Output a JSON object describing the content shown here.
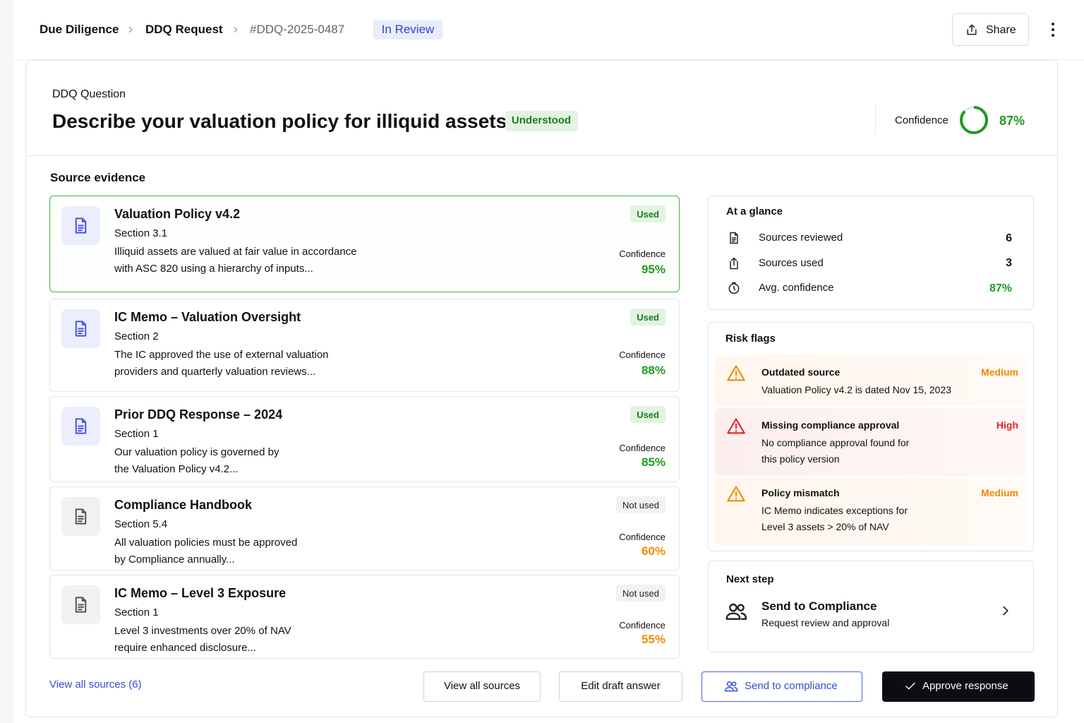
{
  "header": {
    "breadcrumb": [
      "Due Diligence",
      "DDQ Request",
      "#DDQ-2025-0487"
    ],
    "status": "In Review",
    "share": "Share"
  },
  "question": {
    "label": "DDQ Question",
    "text": "Describe your valuation policy for illiquid assets.",
    "badge": "Understood",
    "confidence_label": "Confidence",
    "confidence": {
      "value": 87,
      "label": "87%"
    },
    "color": "#1e9a1e"
  },
  "sources": {
    "title": "Source evidence",
    "items": [
      {
        "title": "Valuation Policy v4.2",
        "section": "Section 3.1",
        "excerpt": [
          "Illiquid assets are valued at fair value in accordance",
          "with ASC 820 using a hierarchy of inputs..."
        ],
        "status": "Used",
        "confidence_label": "Confidence",
        "confidence": "95%",
        "color": "#1e9a1e"
      },
      {
        "title": "IC Memo – Valuation Oversight",
        "section": "Section 2",
        "excerpt": [
          "The IC approved the use of external valuation",
          "providers and quarterly valuation reviews..."
        ],
        "status": "Used",
        "confidence_label": "Confidence",
        "confidence": "88%",
        "color": "#1e9a1e"
      },
      {
        "title": "Prior DDQ Response – 2024",
        "section": "Section 1",
        "excerpt": [
          "Our valuation policy is governed by",
          "the Valuation Policy v4.2..."
        ],
        "status": "Used",
        "confidence_label": "Confidence",
        "confidence": "85%",
        "color": "#1e9a1e"
      },
      {
        "title": "Compliance Handbook",
        "section": "Section 5.4",
        "excerpt": [
          "All valuation policies must be approved",
          "by Compliance annually..."
        ],
        "status": "Not used",
        "confidence_label": "Confidence",
        "confidence": "60%",
        "color": "#f08a00"
      },
      {
        "title": "IC Memo – Level 3 Exposure",
        "section": "Section 1",
        "excerpt": [
          "Level 3 investments over 20% of NAV",
          "require enhanced disclosure..."
        ],
        "status": "Not used",
        "confidence_label": "Confidence",
        "confidence": "55%",
        "color": "#f08a00"
      }
    ]
  },
  "glance": {
    "title": "At a glance",
    "items": [
      {
        "label": "Sources reviewed",
        "value": "6",
        "color": "#111"
      },
      {
        "label": "Sources used",
        "value": "3",
        "color": "#111"
      },
      {
        "label": "Avg. confidence",
        "value": "87%",
        "color": "#1e9a1e"
      }
    ]
  },
  "risks": {
    "title": "Risk flags",
    "items": [
      {
        "title": "Outdated source",
        "severity": "Medium",
        "lines": [
          "Valuation Policy v4.2 is dated Nov 15, 2023"
        ],
        "color": "#f08a00"
      },
      {
        "title": "Missing compliance approval",
        "severity": "High",
        "lines": [
          "No compliance approval found for",
          "this policy version"
        ],
        "color": "#e02424"
      },
      {
        "title": "Policy mismatch",
        "severity": "Medium",
        "lines": [
          "IC Memo indicates exceptions for",
          "Level 3 assets > 20% of NAV"
        ],
        "color": "#f08a00"
      }
    ]
  },
  "next_step": {
    "title": "Next step",
    "action": "Send to Compliance",
    "subtitle": "Request review and approval"
  },
  "footer": {
    "link": "View all sources (6)",
    "buttons": [
      "View all sources",
      "Edit draft answer",
      "Send to compliance",
      "Approve response"
    ]
  }
}
